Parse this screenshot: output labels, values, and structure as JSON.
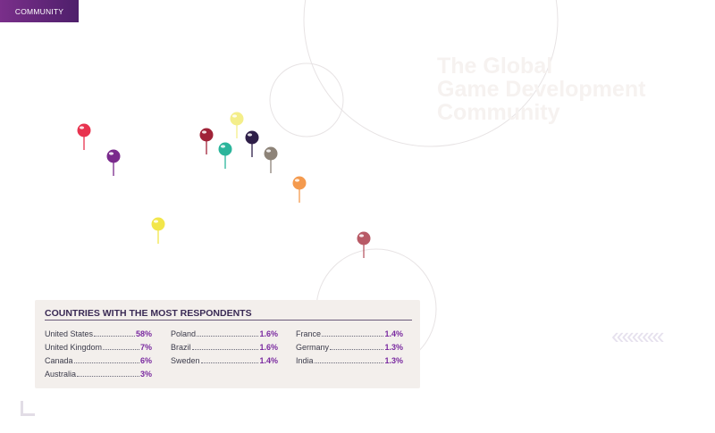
{
  "header": {
    "section_label": "COMMUNITY"
  },
  "title": {
    "line1": "The Global",
    "line2": "Game Development",
    "line3": "Community"
  },
  "pins": [
    {
      "name": "pin-1",
      "color": "#e8334f"
    },
    {
      "name": "pin-2",
      "color": "#7a2a8c"
    },
    {
      "name": "pin-3",
      "color": "#f2e64a"
    },
    {
      "name": "pin-4",
      "color": "#a02338"
    },
    {
      "name": "pin-5",
      "color": "#f4ee8a"
    },
    {
      "name": "pin-6",
      "color": "#2bb59b"
    },
    {
      "name": "pin-7",
      "color": "#2e1e48"
    },
    {
      "name": "pin-8",
      "color": "#8d8378"
    },
    {
      "name": "pin-9",
      "color": "#f49a4e"
    },
    {
      "name": "pin-10",
      "color": "#b85a66"
    }
  ],
  "respondents": {
    "heading": "COUNTRIES WITH THE MOST RESPONDENTS",
    "columns": [
      [
        {
          "country": "United States",
          "value": "58%"
        },
        {
          "country": "United Kingdom",
          "value": "7%"
        },
        {
          "country": "Canada",
          "value": "6%"
        },
        {
          "country": "Australia",
          "value": "3%"
        }
      ],
      [
        {
          "country": "Poland",
          "value": "1.6%"
        },
        {
          "country": "Brazil",
          "value": "1.6%"
        },
        {
          "country": "Sweden",
          "value": "1.4%"
        }
      ],
      [
        {
          "country": "France",
          "value": "1.4%"
        },
        {
          "country": "Germany",
          "value": "1.3%"
        },
        {
          "country": "India",
          "value": "1.3%"
        }
      ]
    ]
  },
  "decor": {
    "chevrons": "‹‹‹‹‹‹‹‹‹‹"
  }
}
